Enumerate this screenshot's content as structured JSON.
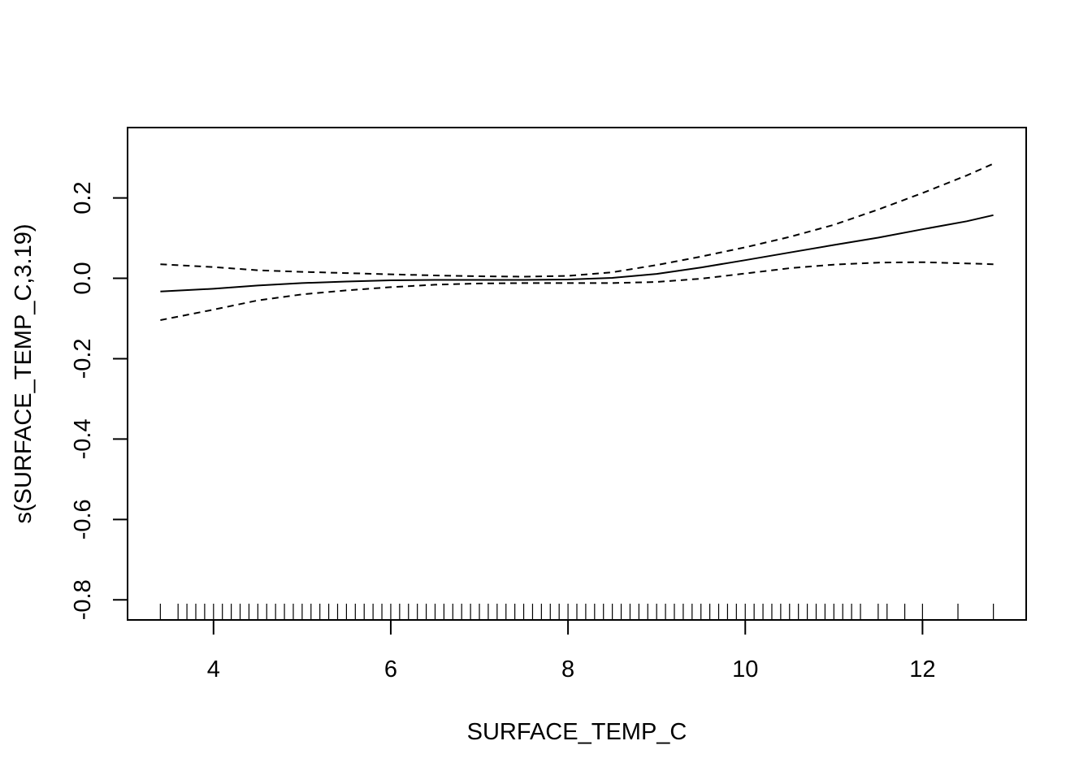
{
  "chart_data": {
    "type": "line",
    "title": "",
    "xlabel": "SURFACE_TEMP_C",
    "ylabel": "s(SURFACE_TEMP_C,3.19)",
    "xlim": [
      3.03,
      13.17
    ],
    "ylim": [
      -0.85,
      0.375
    ],
    "x_ticks": [
      4,
      6,
      8,
      10,
      12
    ],
    "y_ticks": [
      -0.8,
      -0.6,
      -0.4,
      -0.2,
      0.0,
      0.2
    ],
    "x_tick_labels": [
      "4",
      "6",
      "8",
      "10",
      "12"
    ],
    "y_tick_labels": [
      "-0.8",
      "-0.6",
      "-0.4",
      "-0.2",
      "0.0",
      "0.2"
    ],
    "grid": false,
    "series": [
      {
        "name": "fit",
        "style": "solid",
        "x": [
          3.4,
          4.0,
          4.5,
          5.0,
          5.5,
          6.0,
          6.5,
          7.0,
          7.5,
          8.0,
          8.5,
          9.0,
          9.5,
          10.0,
          10.5,
          11.0,
          11.5,
          12.0,
          12.5,
          12.8
        ],
        "y": [
          -0.033,
          -0.026,
          -0.018,
          -0.012,
          -0.008,
          -0.005,
          -0.004,
          -0.004,
          -0.004,
          -0.003,
          0.001,
          0.011,
          0.027,
          0.045,
          0.064,
          0.083,
          0.101,
          0.122,
          0.142,
          0.157
        ]
      },
      {
        "name": "upper",
        "style": "dashed",
        "x": [
          3.4,
          4.0,
          4.5,
          5.0,
          5.5,
          6.0,
          6.5,
          7.0,
          7.5,
          8.0,
          8.5,
          9.0,
          9.5,
          10.0,
          10.5,
          11.0,
          11.5,
          12.0,
          12.5,
          12.8
        ],
        "y": [
          0.035,
          0.028,
          0.02,
          0.016,
          0.013,
          0.01,
          0.007,
          0.005,
          0.004,
          0.006,
          0.015,
          0.033,
          0.054,
          0.077,
          0.103,
          0.133,
          0.171,
          0.212,
          0.256,
          0.285
        ]
      },
      {
        "name": "lower",
        "style": "dashed",
        "x": [
          3.4,
          4.0,
          4.5,
          5.0,
          5.5,
          6.0,
          6.5,
          7.0,
          7.5,
          8.0,
          8.5,
          9.0,
          9.5,
          10.0,
          10.5,
          11.0,
          11.5,
          12.0,
          12.5,
          12.8
        ],
        "y": [
          -0.104,
          -0.078,
          -0.055,
          -0.04,
          -0.03,
          -0.022,
          -0.016,
          -0.013,
          -0.012,
          -0.012,
          -0.012,
          -0.009,
          -0.001,
          0.012,
          0.025,
          0.034,
          0.039,
          0.04,
          0.037,
          0.035
        ]
      }
    ],
    "rug": [
      3.4,
      3.6,
      3.7,
      3.8,
      3.9,
      4.0,
      4.1,
      4.2,
      4.3,
      4.4,
      4.5,
      4.6,
      4.7,
      4.8,
      4.9,
      5.0,
      5.1,
      5.2,
      5.3,
      5.4,
      5.5,
      5.6,
      5.7,
      5.8,
      5.9,
      6.0,
      6.1,
      6.2,
      6.3,
      6.4,
      6.5,
      6.6,
      6.7,
      6.8,
      6.9,
      7.0,
      7.1,
      7.2,
      7.3,
      7.4,
      7.5,
      7.6,
      7.7,
      7.8,
      7.9,
      8.0,
      8.1,
      8.2,
      8.3,
      8.4,
      8.5,
      8.6,
      8.7,
      8.8,
      8.9,
      9.0,
      9.1,
      9.2,
      9.3,
      9.4,
      9.5,
      9.6,
      9.7,
      9.8,
      9.9,
      10.0,
      10.1,
      10.2,
      10.3,
      10.4,
      10.5,
      10.6,
      10.7,
      10.8,
      10.9,
      11.0,
      11.1,
      11.2,
      11.3,
      11.5,
      11.6,
      11.8,
      12.0,
      12.4,
      12.8
    ]
  }
}
